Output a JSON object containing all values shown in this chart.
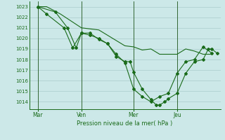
{
  "background_color": "#cce8e8",
  "grid_color": "#aacccc",
  "line_color": "#1a6b1a",
  "xlabel": "Pression niveau de la mer( hPa )",
  "ylim": [
    1013.3,
    1023.5
  ],
  "yticks": [
    1014,
    1015,
    1016,
    1017,
    1018,
    1019,
    1020,
    1021,
    1022,
    1023
  ],
  "xtick_labels": [
    "Mar",
    "Ven",
    "Mer",
    "Jeu"
  ],
  "xtick_positions": [
    0.5,
    3.0,
    6.0,
    8.5
  ],
  "xlim": [
    0.0,
    11.0
  ],
  "series1_no_markers": [
    [
      0.5,
      1023.0
    ],
    [
      1.0,
      1023.0
    ],
    [
      1.8,
      1022.3
    ],
    [
      3.0,
      1021.0
    ],
    [
      4.0,
      1020.8
    ],
    [
      4.5,
      1020.3
    ],
    [
      5.0,
      1019.8
    ],
    [
      5.5,
      1019.3
    ],
    [
      6.0,
      1019.2
    ],
    [
      6.5,
      1018.9
    ],
    [
      7.0,
      1019.0
    ],
    [
      7.5,
      1018.5
    ],
    [
      8.0,
      1018.5
    ],
    [
      8.5,
      1018.5
    ],
    [
      9.0,
      1019.0
    ],
    [
      9.5,
      1018.8
    ],
    [
      10.0,
      1018.5
    ],
    [
      10.5,
      1018.5
    ]
  ],
  "series2_with_markers": [
    [
      0.5,
      1023.0
    ],
    [
      1.0,
      1022.3
    ],
    [
      2.0,
      1021.0
    ],
    [
      2.5,
      1019.1
    ],
    [
      3.0,
      1020.5
    ],
    [
      3.5,
      1020.5
    ],
    [
      4.0,
      1019.9
    ],
    [
      4.5,
      1019.5
    ],
    [
      5.0,
      1018.3
    ],
    [
      5.5,
      1017.8
    ],
    [
      5.8,
      1017.8
    ],
    [
      6.0,
      1016.8
    ],
    [
      6.5,
      1015.2
    ],
    [
      7.0,
      1014.2
    ],
    [
      7.3,
      1013.7
    ],
    [
      7.5,
      1013.7
    ],
    [
      7.8,
      1014.0
    ],
    [
      8.0,
      1014.3
    ],
    [
      8.5,
      1014.8
    ],
    [
      9.0,
      1016.7
    ],
    [
      9.5,
      1017.8
    ],
    [
      10.0,
      1018.0
    ],
    [
      10.3,
      1019.0
    ],
    [
      10.5,
      1019.0
    ],
    [
      10.8,
      1018.6
    ]
  ],
  "series3_with_markers": [
    [
      0.5,
      1023.0
    ],
    [
      1.5,
      1022.5
    ],
    [
      2.2,
      1021.0
    ],
    [
      2.7,
      1019.1
    ],
    [
      3.0,
      1020.5
    ],
    [
      3.5,
      1020.3
    ],
    [
      4.0,
      1020.0
    ],
    [
      4.5,
      1019.5
    ],
    [
      5.0,
      1018.5
    ],
    [
      5.5,
      1017.7
    ],
    [
      6.0,
      1015.2
    ],
    [
      6.5,
      1014.5
    ],
    [
      7.0,
      1014.0
    ],
    [
      7.5,
      1014.5
    ],
    [
      8.0,
      1014.8
    ],
    [
      8.5,
      1016.7
    ],
    [
      9.0,
      1017.8
    ],
    [
      9.5,
      1018.0
    ],
    [
      10.0,
      1019.2
    ],
    [
      10.5,
      1018.6
    ]
  ],
  "vline_color": "#336633",
  "vline_positions": [
    0.5,
    3.0,
    6.0,
    8.5
  ]
}
